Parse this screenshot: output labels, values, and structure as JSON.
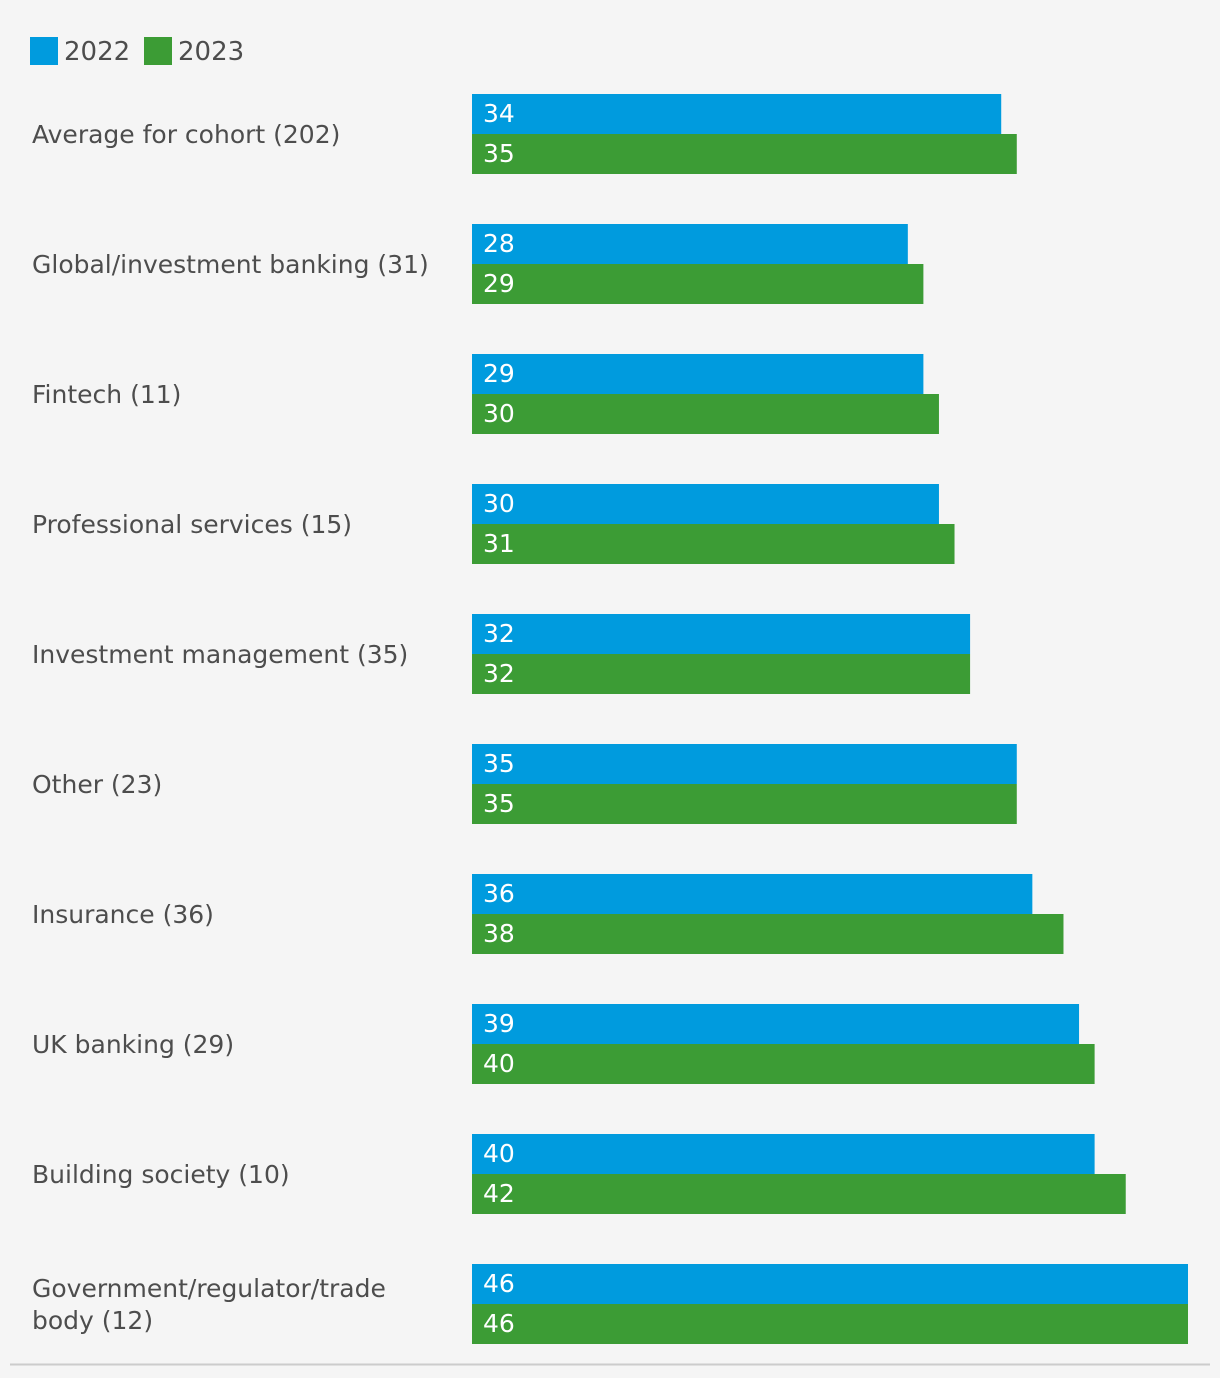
{
  "chart_data": {
    "type": "bar",
    "orientation": "horizontal",
    "legend_position": "top-left",
    "grid": false,
    "xlim": [
      0,
      46
    ],
    "categories": [
      "Average for cohort (202)",
      "Global/investment banking (31)",
      "Fintech (11)",
      "Professional services (15)",
      "Investment management (35)",
      "Other (23)",
      "Insurance (36)",
      "UK banking (29)",
      "Building society (10)",
      "Government/regulator/trade body (12)"
    ],
    "series": [
      {
        "name": "2022",
        "color": "#009bde",
        "values": [
          34,
          28,
          29,
          30,
          32,
          35,
          36,
          39,
          40,
          46
        ]
      },
      {
        "name": "2023",
        "color": "#3c9c35",
        "values": [
          35,
          29,
          30,
          31,
          32,
          35,
          38,
          40,
          42,
          46
        ]
      }
    ],
    "divider_color": "#cccccc"
  }
}
